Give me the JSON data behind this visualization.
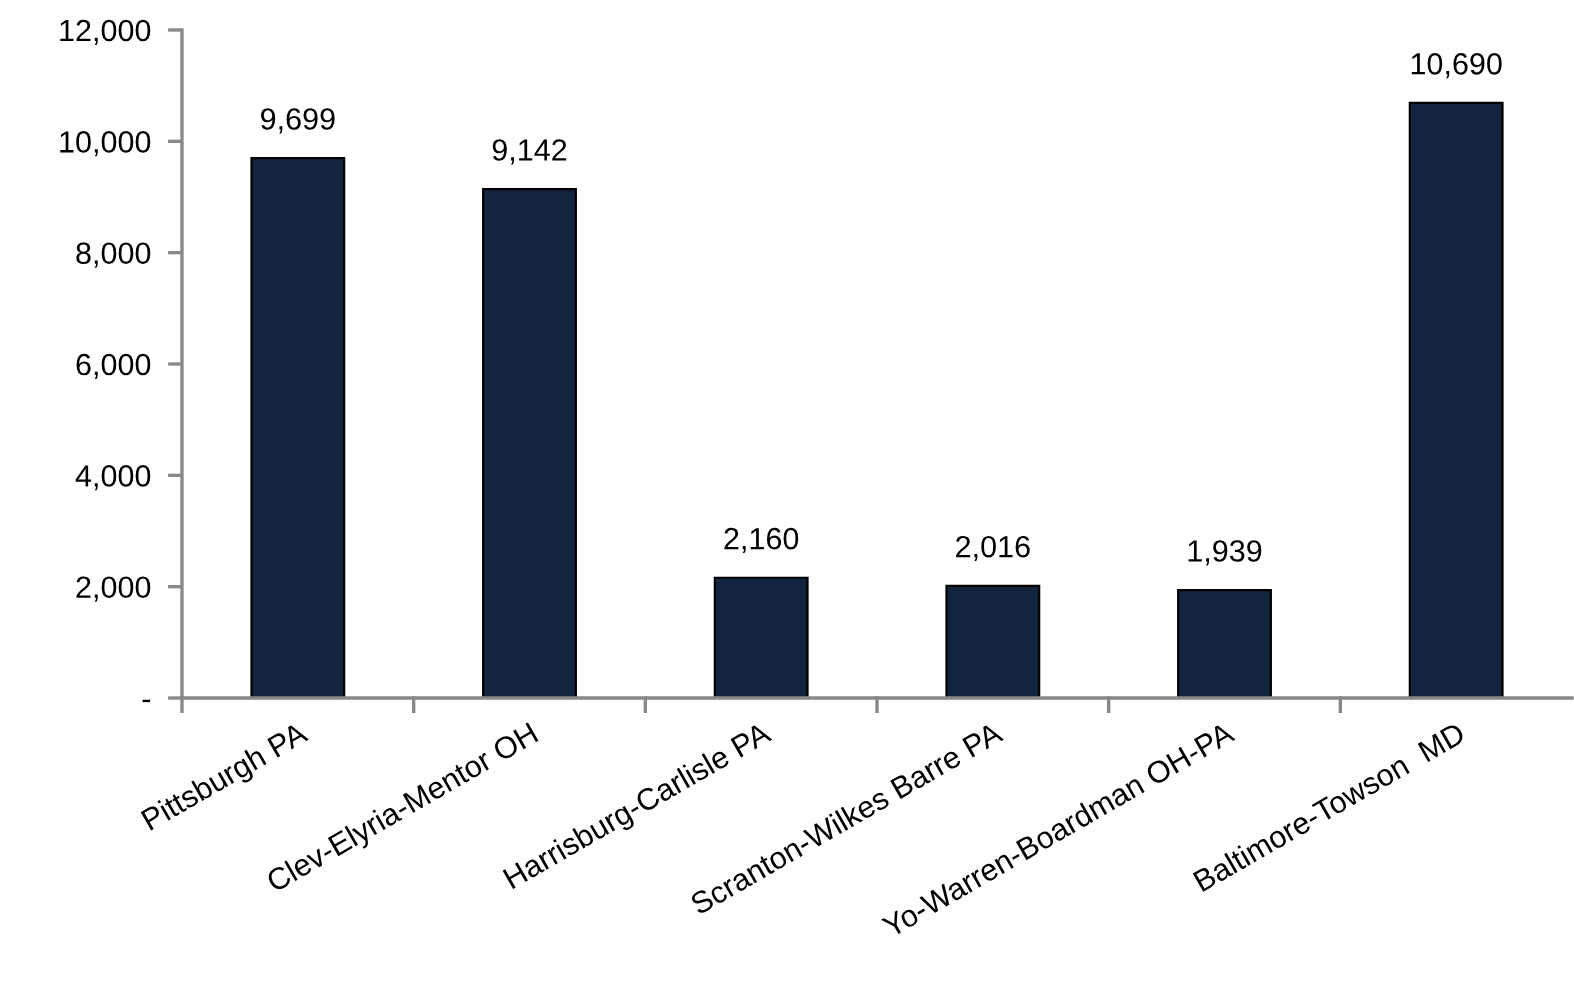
{
  "chart_data": {
    "type": "bar",
    "categories": [
      "Pittsburgh PA",
      "Clev-Elyria-Mentor OH",
      "Harrisburg-Carlisle PA",
      "Scranton-Wilkes Barre PA",
      "Yo-Warren-Boardman OH-PA",
      "Baltimore-Towson  MD"
    ],
    "values": [
      9699,
      9142,
      2160,
      2016,
      1939,
      10690
    ],
    "color": "#13243f",
    "ylim": [
      0,
      12000
    ],
    "yticks": [
      {
        "value": 0,
        "label": "-"
      },
      {
        "value": 2000,
        "label": "2,000"
      },
      {
        "value": 4000,
        "label": "4,000"
      },
      {
        "value": 6000,
        "label": "6,000"
      },
      {
        "value": 8000,
        "label": "8,000"
      },
      {
        "value": 10000,
        "label": "10,000"
      },
      {
        "value": 12000,
        "label": "12,000"
      }
    ],
    "value_labels": [
      "9,699",
      "9,142",
      "2,160",
      "2,016",
      "1,939",
      "10,690"
    ],
    "grid": false,
    "legend": false
  }
}
